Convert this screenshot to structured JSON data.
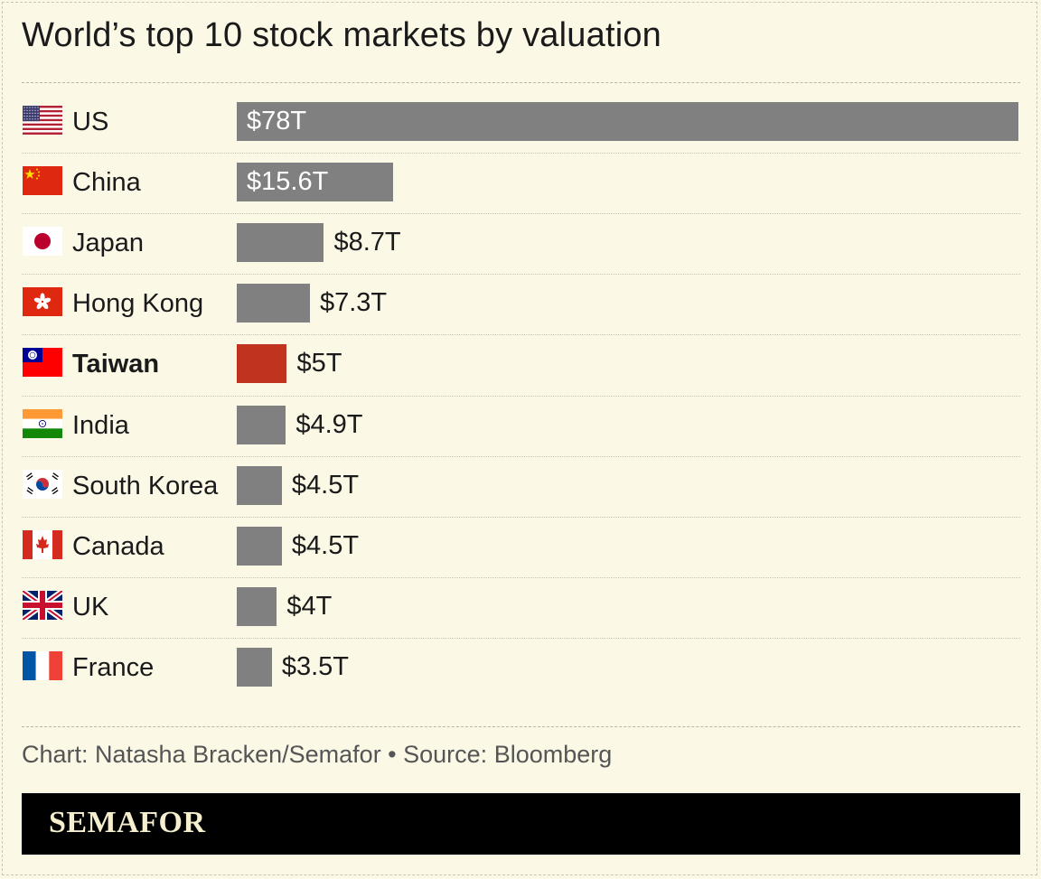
{
  "chart_data": {
    "type": "bar",
    "orientation": "horizontal",
    "title": "World’s top 10 stock markets by valuation",
    "categories": [
      "US",
      "China",
      "Japan",
      "Hong Kong",
      "Taiwan",
      "India",
      "South Korea",
      "Canada",
      "UK",
      "France"
    ],
    "values": [
      78,
      15.6,
      8.7,
      7.3,
      5,
      4.9,
      4.5,
      4.5,
      4,
      3.5
    ],
    "value_labels": [
      "$78T",
      "$15.6T",
      "$8.7T",
      "$7.3T",
      "$5T",
      "$4.9T",
      "$4.5T",
      "$4.5T",
      "$4T",
      "$3.5T"
    ],
    "highlight": "Taiwan",
    "colors": {
      "bar": "#808080",
      "highlight": "#c0331f"
    },
    "flag_icons": [
      "us-flag-icon",
      "china-flag-icon",
      "japan-flag-icon",
      "hong-kong-flag-icon",
      "taiwan-flag-icon",
      "india-flag-icon",
      "south-korea-flag-icon",
      "canada-flag-icon",
      "uk-flag-icon",
      "france-flag-icon"
    ],
    "grid": false,
    "legend": "none"
  },
  "footer": {
    "credit": "Chart: Natasha Bracken/Semafor • Source: Bloomberg",
    "brand": "SEMAFOR"
  }
}
